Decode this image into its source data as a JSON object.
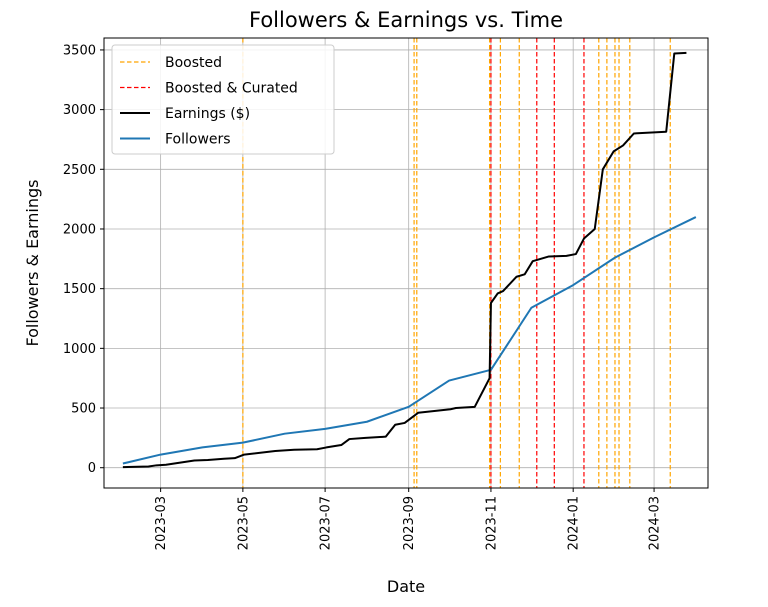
{
  "chart_data": {
    "type": "line",
    "title": "Followers & Earnings vs. Time",
    "xlabel": "Date",
    "ylabel": "Followers & Earnings",
    "xlim": [
      "2023-01-18",
      "2024-04-10"
    ],
    "ylim": [
      -170,
      3600
    ],
    "grid": true,
    "legend_position": "top-left",
    "x_ticks": [
      {
        "date": "2023-03-01",
        "label": "2023-03"
      },
      {
        "date": "2023-05-01",
        "label": "2023-05"
      },
      {
        "date": "2023-07-01",
        "label": "2023-07"
      },
      {
        "date": "2023-09-01",
        "label": "2023-09"
      },
      {
        "date": "2023-11-01",
        "label": "2023-11"
      },
      {
        "date": "2024-01-01",
        "label": "2024-01"
      },
      {
        "date": "2024-03-01",
        "label": "2024-03"
      }
    ],
    "y_ticks": [
      0,
      500,
      1000,
      1500,
      2000,
      2500,
      3000,
      3500
    ],
    "legend": [
      {
        "key": "boosted",
        "label": "Boosted",
        "color": "#ffa500",
        "style": "dashed"
      },
      {
        "key": "curated",
        "label": "Boosted & Curated",
        "color": "#ff0000",
        "style": "dashed"
      },
      {
        "key": "earnings",
        "label": "Earnings ($)",
        "color": "#000000",
        "style": "solid"
      },
      {
        "key": "followers",
        "label": "Followers",
        "color": "#1f77b4",
        "style": "solid"
      }
    ],
    "boosted_dates": [
      "2023-05-01",
      "2023-09-05",
      "2023-09-07",
      "2023-10-31",
      "2023-11-08",
      "2023-11-22",
      "2024-01-20",
      "2024-01-26",
      "2024-02-01",
      "2024-02-04",
      "2024-02-12",
      "2024-03-13"
    ],
    "curated_dates": [
      "2023-11-01",
      "2023-12-05",
      "2023-12-18",
      "2024-01-09"
    ],
    "series": [
      {
        "name": "Earnings ($)",
        "color": "#000000",
        "points": [
          [
            "2023-02-01",
            5
          ],
          [
            "2023-02-20",
            10
          ],
          [
            "2023-02-26",
            20
          ],
          [
            "2023-03-05",
            25
          ],
          [
            "2023-03-26",
            60
          ],
          [
            "2023-04-05",
            65
          ],
          [
            "2023-04-17",
            75
          ],
          [
            "2023-04-25",
            80
          ],
          [
            "2023-05-02",
            110
          ],
          [
            "2023-05-25",
            140
          ],
          [
            "2023-06-08",
            150
          ],
          [
            "2023-06-25",
            155
          ],
          [
            "2023-07-02",
            170
          ],
          [
            "2023-07-13",
            190
          ],
          [
            "2023-07-19",
            240
          ],
          [
            "2023-07-31",
            250
          ],
          [
            "2023-08-15",
            260
          ],
          [
            "2023-08-22",
            360
          ],
          [
            "2023-08-29",
            375
          ],
          [
            "2023-09-08",
            460
          ],
          [
            "2023-09-20",
            475
          ],
          [
            "2023-10-02",
            490
          ],
          [
            "2023-10-06",
            500
          ],
          [
            "2023-10-20",
            510
          ],
          [
            "2023-10-31",
            750
          ],
          [
            "2023-11-01",
            1380
          ],
          [
            "2023-11-06",
            1460
          ],
          [
            "2023-11-10",
            1480
          ],
          [
            "2023-11-20",
            1600
          ],
          [
            "2023-11-26",
            1620
          ],
          [
            "2023-12-02",
            1730
          ],
          [
            "2023-12-14",
            1770
          ],
          [
            "2023-12-27",
            1775
          ],
          [
            "2024-01-03",
            1790
          ],
          [
            "2024-01-09",
            1920
          ],
          [
            "2024-01-17",
            2000
          ],
          [
            "2024-01-23",
            2500
          ],
          [
            "2024-01-31",
            2650
          ],
          [
            "2024-02-07",
            2700
          ],
          [
            "2024-02-15",
            2800
          ],
          [
            "2024-03-10",
            2815
          ],
          [
            "2024-03-16",
            3470
          ],
          [
            "2024-03-25",
            3475
          ]
        ]
      },
      {
        "name": "Followers",
        "color": "#1f77b4",
        "points": [
          [
            "2023-02-01",
            35
          ],
          [
            "2023-03-01",
            110
          ],
          [
            "2023-04-01",
            170
          ],
          [
            "2023-05-01",
            210
          ],
          [
            "2023-06-01",
            285
          ],
          [
            "2023-07-01",
            325
          ],
          [
            "2023-08-01",
            385
          ],
          [
            "2023-09-01",
            510
          ],
          [
            "2023-10-01",
            730
          ],
          [
            "2023-11-01",
            820
          ],
          [
            "2023-12-01",
            1340
          ],
          [
            "2024-01-01",
            1530
          ],
          [
            "2024-02-01",
            1760
          ],
          [
            "2024-03-01",
            1930
          ],
          [
            "2024-04-01",
            2100
          ]
        ]
      }
    ]
  }
}
